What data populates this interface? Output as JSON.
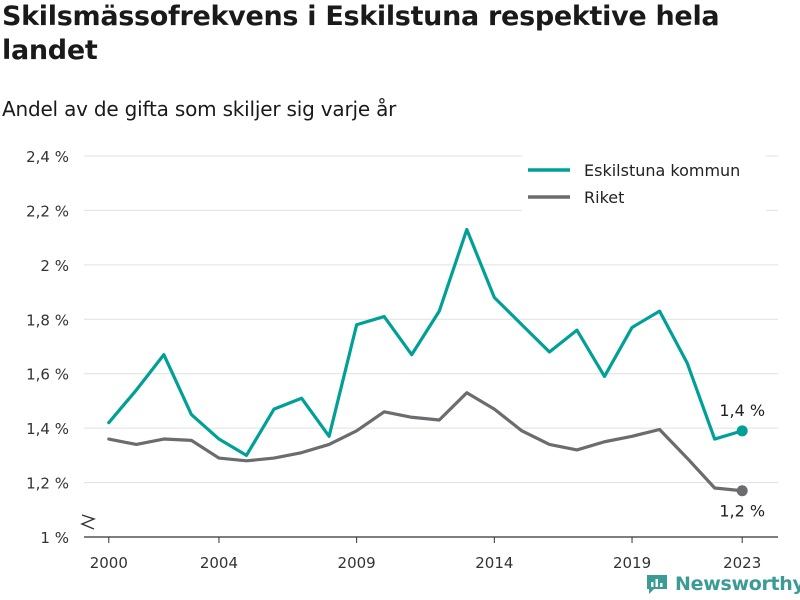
{
  "title": "Skilsmässofrekvens i Eskilstuna respektive hela landet",
  "subtitle": "Andel av de gifta som skiljer sig varje år",
  "brand": {
    "name": "Newsworthy",
    "icon": "newsworthy-logo-icon"
  },
  "colors": {
    "eskilstuna": "#00a096",
    "riket": "#6b6b70",
    "grid": "#e0e0e0",
    "axis": "#333333"
  },
  "chart_data": {
    "type": "line",
    "x": [
      2000,
      2001,
      2002,
      2003,
      2004,
      2005,
      2006,
      2007,
      2008,
      2009,
      2010,
      2011,
      2012,
      2013,
      2014,
      2015,
      2016,
      2017,
      2018,
      2019,
      2020,
      2021,
      2022,
      2023
    ],
    "xticks": [
      2000,
      2004,
      2009,
      2014,
      2019,
      2023
    ],
    "xlim": [
      1999.1,
      2024.3
    ],
    "ylim": [
      1.0,
      2.4
    ],
    "yticks": [
      {
        "value": 1.0,
        "label": "1 %"
      },
      {
        "value": 1.2,
        "label": "1,2 %"
      },
      {
        "value": 1.4,
        "label": "1,4 %"
      },
      {
        "value": 1.6,
        "label": "1,6 %"
      },
      {
        "value": 1.8,
        "label": "1,8 %"
      },
      {
        "value": 2.0,
        "label": "2 %"
      },
      {
        "value": 2.2,
        "label": "2,2 %"
      },
      {
        "value": 2.4,
        "label": "2,4 %"
      }
    ],
    "axis_break": true,
    "grid": true,
    "legend_position": "top-right",
    "series": [
      {
        "name": "Eskilstuna kommun",
        "color": "#00a096",
        "values": [
          1.42,
          1.54,
          1.67,
          1.45,
          1.36,
          1.3,
          1.47,
          1.51,
          1.37,
          1.78,
          1.81,
          1.67,
          1.83,
          2.13,
          1.88,
          1.78,
          1.68,
          1.76,
          1.59,
          1.77,
          1.83,
          1.64,
          1.36,
          1.39
        ],
        "end_label": "1,4 %"
      },
      {
        "name": "Riket",
        "color": "#6b6b70",
        "values": [
          1.36,
          1.34,
          1.36,
          1.355,
          1.29,
          1.28,
          1.29,
          1.31,
          1.34,
          1.39,
          1.46,
          1.44,
          1.43,
          1.53,
          1.47,
          1.39,
          1.34,
          1.32,
          1.35,
          1.37,
          1.395,
          1.29,
          1.18,
          1.17
        ],
        "end_label": "1,2 %"
      }
    ]
  }
}
